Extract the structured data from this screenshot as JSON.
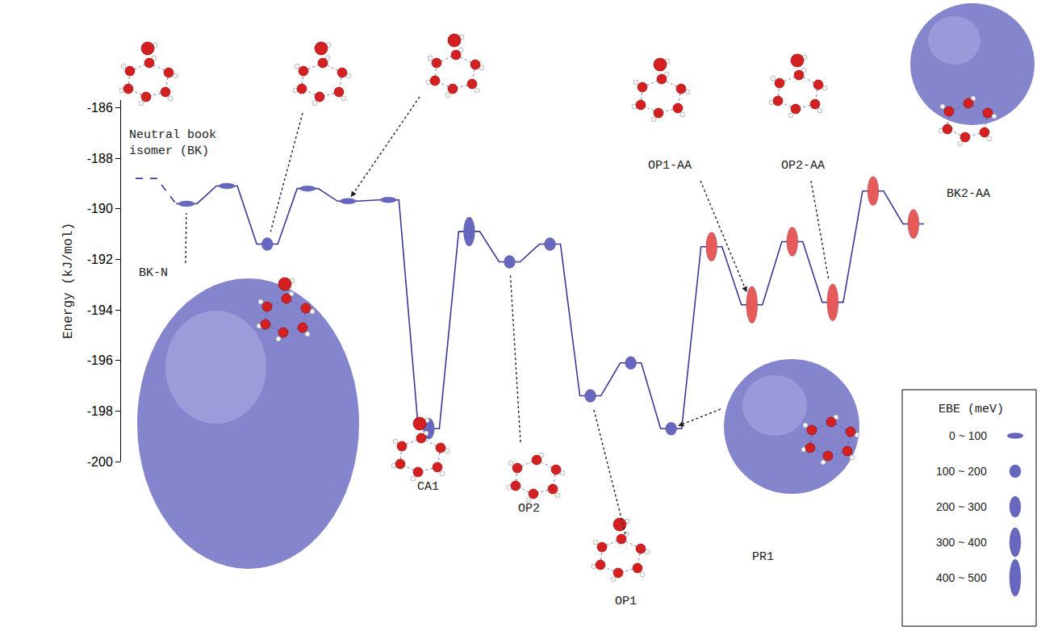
{
  "chart_data": {
    "type": "line",
    "y_label": "Energy (kJ/mol)",
    "ylim": [
      -200,
      -185.7
    ],
    "yticks": [
      -200,
      -198,
      -196,
      -194,
      -192,
      -190,
      -188,
      -186
    ],
    "tick_labels": "y",
    "grid": false,
    "series": [
      {
        "line_style": "dashed",
        "color": "#3a3a96",
        "x": [
          0,
          1
        ],
        "values": [
          -188.8,
          -189.8
        ]
      },
      {
        "line_style": "solid",
        "color": "#3a3a96",
        "x": [
          1,
          2,
          3,
          4,
          5,
          6,
          7,
          8,
          9,
          10,
          11,
          12,
          13,
          14,
          15,
          16,
          17,
          18,
          19
        ],
        "values": [
          -189.8,
          -189.1,
          -191.4,
          -189.2,
          -189.7,
          -189.65,
          -198.7,
          -190.9,
          -192.1,
          -191.4,
          -197.4,
          -196.1,
          -198.7,
          -191.5,
          -193.8,
          -191.3,
          -193.7,
          -189.3,
          -190.6
        ],
        "ebe": [
          50,
          50,
          150,
          50,
          50,
          50,
          250,
          350,
          150,
          150,
          150,
          150,
          150,
          350,
          450,
          350,
          450,
          350,
          350
        ],
        "colors": [
          "#6767bf",
          "#6767bf",
          "#6767bf",
          "#6767bf",
          "#6767bf",
          "#6767bf",
          "#6767bf",
          "#6767bf",
          "#6767bf",
          "#6767bf",
          "#6767bf",
          "#6767bf",
          "#6767bf",
          "#e65a5a",
          "#e65a5a",
          "#e65a5a",
          "#e65a5a",
          "#e65a5a",
          "#e65a5a"
        ]
      }
    ],
    "annotations": [
      {
        "text": "Neutral book isomer (BK)",
        "x": 0
      },
      {
        "text": "BK-N",
        "x": 1
      },
      {
        "text": "CA1",
        "x": 7
      },
      {
        "text": "OP2",
        "x": 9
      },
      {
        "text": "OP1",
        "x": 11
      },
      {
        "text": "PR1",
        "x": 13
      },
      {
        "text": "OP1-AA",
        "x": 15
      },
      {
        "text": "OP2-AA",
        "x": 17
      },
      {
        "text": "BK2-AA",
        "x": 19
      }
    ],
    "ebe_legend": {
      "title": "EBE (meV)",
      "color": "#6767bf",
      "bins": [
        {
          "label": "0 ~ 100",
          "min": 0,
          "max": 100
        },
        {
          "label": "100 ~ 200",
          "min": 100,
          "max": 200
        },
        {
          "label": "200 ~ 300",
          "min": 200,
          "max": 300
        },
        {
          "label": "300 ~ 400",
          "min": 300,
          "max": 400
        },
        {
          "label": "400 ~ 500",
          "min": 400,
          "max": 500
        }
      ]
    }
  }
}
